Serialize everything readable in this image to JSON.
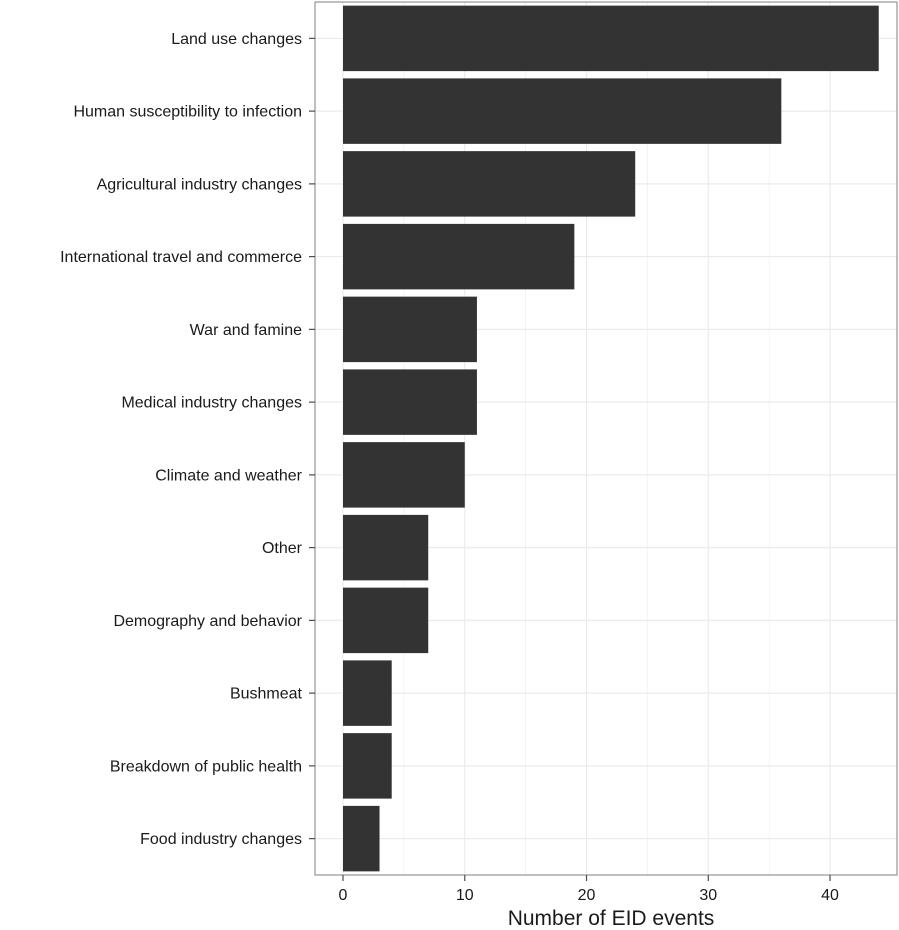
{
  "chart_data": {
    "type": "bar",
    "orientation": "horizontal",
    "categories": [
      "Land use changes",
      "Human susceptibility to infection",
      "Agricultural industry changes",
      "International travel and commerce",
      "War and famine",
      "Medical industry changes",
      "Climate and weather",
      "Other",
      "Demography and behavior",
      "Bushmeat",
      "Breakdown of public health",
      "Food industry changes"
    ],
    "values": [
      44,
      36,
      24,
      19,
      11,
      11,
      10,
      7,
      7,
      4,
      4,
      3
    ],
    "xlabel": "Number of EID events",
    "ylabel": "",
    "xlim": [
      -2.3,
      45.5
    ],
    "xticks": [
      0,
      10,
      20,
      30,
      40
    ],
    "grid": true,
    "bar_color": "#333333",
    "grid_color": "#ebebeb",
    "border_color": "#7f7f7f"
  }
}
